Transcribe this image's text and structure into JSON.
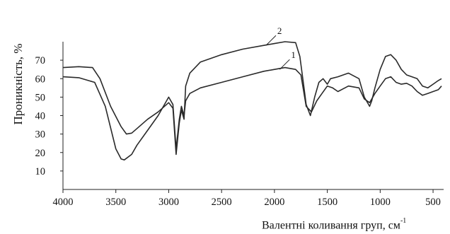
{
  "chart_data": {
    "type": "line",
    "title": "",
    "ylabel": "Проникність, %",
    "xlabel": {
      "text": "Валентні коливання груп, см",
      "unit_superscript": "-1"
    },
    "xlim": [
      4000,
      400
    ],
    "ylim": [
      0,
      80
    ],
    "x_reversed": true,
    "xticks": [
      "4000",
      "3500",
      "3000",
      "2500",
      "2000",
      "1500",
      "1000",
      "500"
    ],
    "yticks": [
      "10",
      "20",
      "30",
      "40",
      "50",
      "60",
      "70"
    ],
    "grid": false,
    "legend": "none",
    "series": [
      {
        "name": "1",
        "x": [
          4000,
          3850,
          3700,
          3600,
          3500,
          3450,
          3420,
          3350,
          3300,
          3200,
          3100,
          3000,
          2960,
          2930,
          2900,
          2880,
          2855,
          2840,
          2800,
          2700,
          2500,
          2300,
          2100,
          2000,
          1900,
          1800,
          1750,
          1720,
          1700,
          1650,
          1600,
          1550,
          1500,
          1450,
          1400,
          1300,
          1200,
          1150,
          1100,
          1050,
          1000,
          950,
          900,
          850,
          800,
          750,
          700,
          650,
          600,
          550,
          500,
          450,
          420
        ],
        "y": [
          61,
          60.5,
          58,
          45,
          22,
          16.5,
          16,
          19,
          24,
          32,
          40,
          50,
          46,
          22,
          38,
          45,
          40,
          48,
          52,
          55,
          58,
          61,
          64,
          65,
          66,
          65,
          62,
          52,
          45,
          42,
          48,
          52,
          56,
          55,
          53,
          56,
          55,
          49,
          47,
          52,
          56,
          60,
          61,
          58,
          57,
          57.5,
          56,
          53,
          51,
          52,
          53,
          54,
          56
        ]
      },
      {
        "name": "2",
        "x": [
          4000,
          3850,
          3720,
          3650,
          3550,
          3450,
          3400,
          3350,
          3300,
          3200,
          3100,
          3000,
          2960,
          2930,
          2900,
          2880,
          2855,
          2840,
          2800,
          2700,
          2500,
          2300,
          2100,
          2000,
          1900,
          1800,
          1760,
          1720,
          1700,
          1660,
          1620,
          1580,
          1540,
          1500,
          1470,
          1400,
          1300,
          1200,
          1150,
          1100,
          1080,
          1050,
          1000,
          950,
          900,
          850,
          800,
          750,
          700,
          650,
          600,
          550,
          500,
          450,
          420
        ],
        "y": [
          66,
          66.5,
          66,
          60,
          45,
          34,
          30,
          30.5,
          33,
          38,
          42,
          47,
          44,
          19,
          36,
          43,
          38,
          56,
          63,
          69,
          73,
          76,
          78,
          79,
          80,
          79.5,
          72,
          55,
          46,
          40,
          50,
          58,
          60,
          57,
          60,
          61,
          63,
          60,
          50,
          45,
          48,
          55,
          65,
          72,
          73,
          70,
          65,
          62,
          61,
          60,
          56,
          55,
          57,
          59,
          60
        ]
      }
    ],
    "annotations": [
      {
        "text": "1",
        "series": "1",
        "x": 1950,
        "y": 65
      },
      {
        "text": "2",
        "series": "2",
        "x": 2080,
        "y": 78
      }
    ]
  }
}
